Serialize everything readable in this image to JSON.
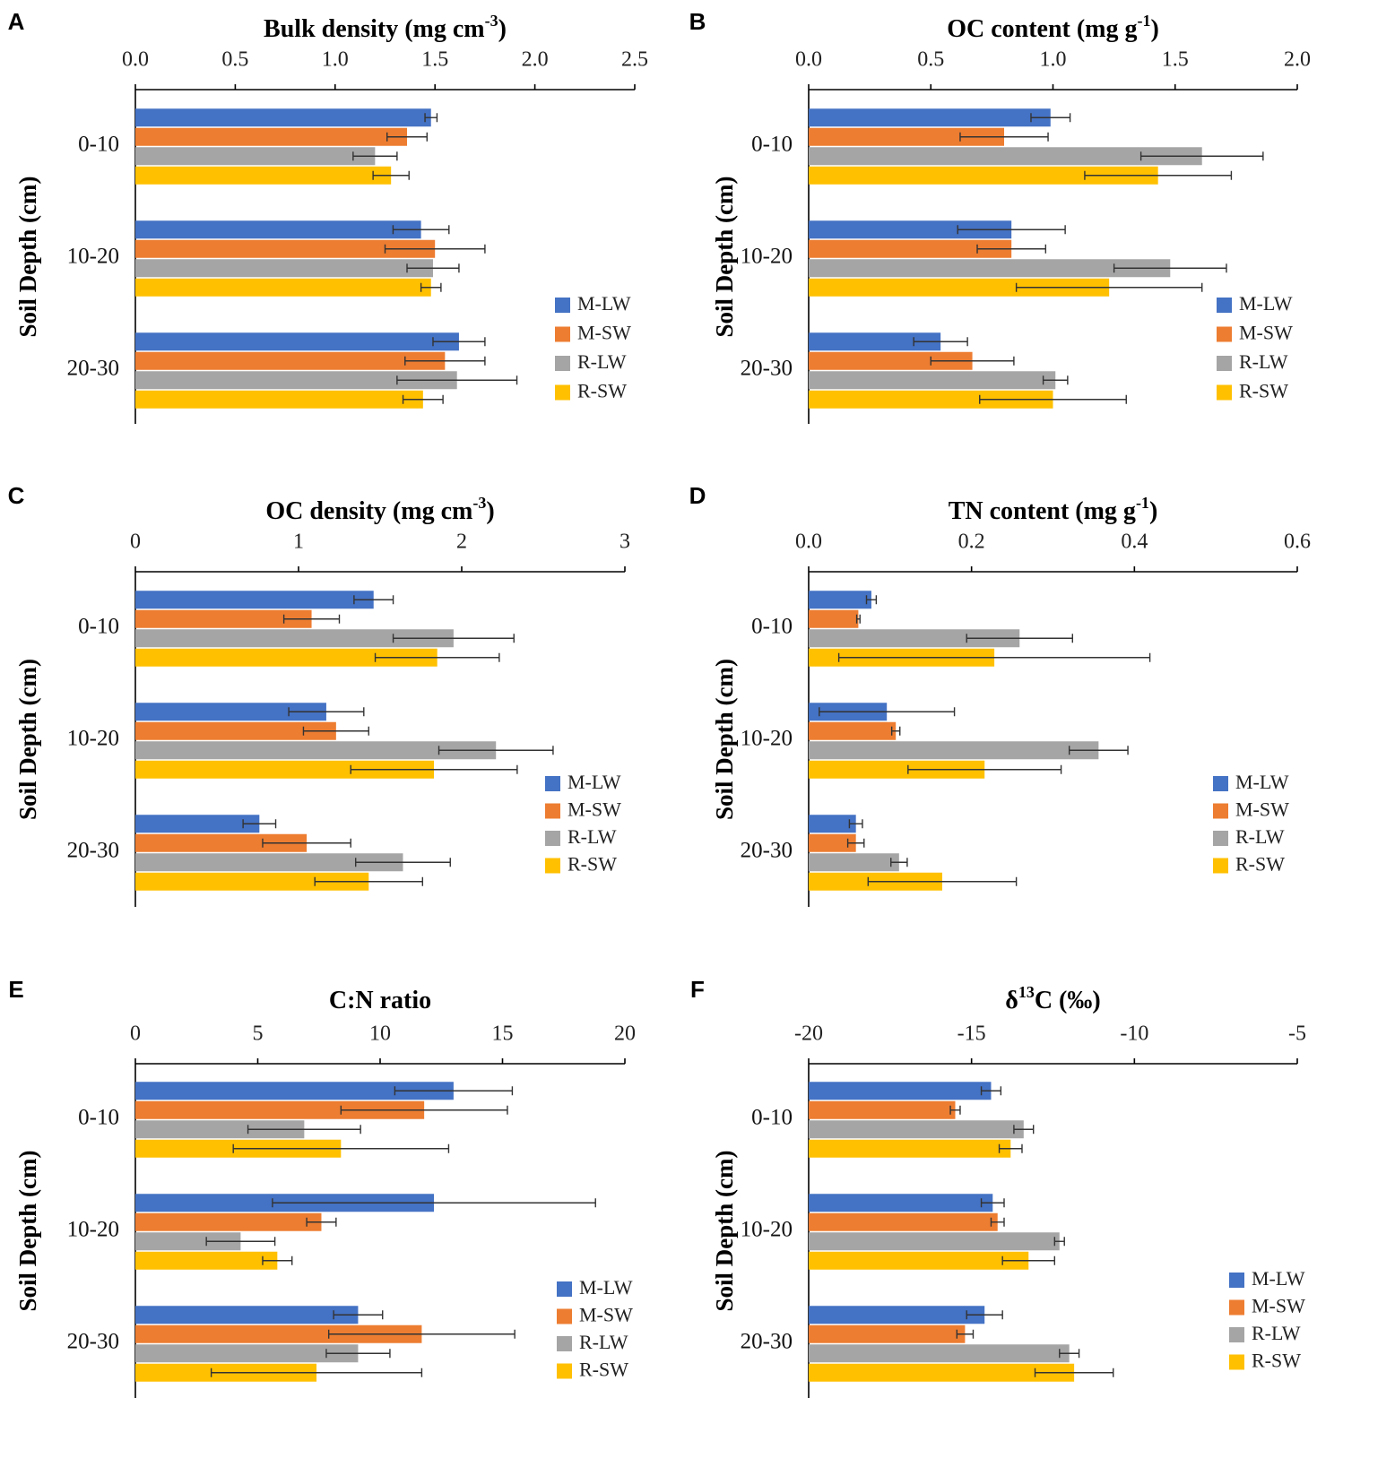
{
  "series_names": [
    "M-LW",
    "M-SW",
    "R-LW",
    "R-SW"
  ],
  "colors": [
    "#4472C4",
    "#ED7D31",
    "#A5A5A5",
    "#FFC000"
  ],
  "depth_labels": [
    "0-10",
    "10-20",
    "20-30"
  ],
  "y_axis_label": "Soil Depth (cm)",
  "chart_data": [
    {
      "type": "bar",
      "letter": "A",
      "title": "Bulk density (mg cm-3)",
      "title_parts": {
        "pre": "Bulk density (mg cm",
        "sup": "-3",
        "post": ")"
      },
      "xlim": [
        0,
        2.5
      ],
      "ticks": [
        0,
        0.5,
        1,
        1.5,
        2,
        2.5
      ],
      "tick_labels": [
        "0.0",
        "0.5",
        "1.0",
        "1.5",
        "2.0",
        "2.5"
      ],
      "categories": [
        "0-10",
        "10-20",
        "20-30"
      ],
      "series": [
        {
          "name": "M-LW",
          "values": [
            1.48,
            1.43,
            1.62
          ],
          "errors": [
            0.03,
            0.14,
            0.13
          ]
        },
        {
          "name": "M-SW",
          "values": [
            1.36,
            1.5,
            1.55
          ],
          "errors": [
            0.1,
            0.25,
            0.2
          ]
        },
        {
          "name": "R-LW",
          "values": [
            1.2,
            1.49,
            1.61
          ],
          "errors": [
            0.11,
            0.13,
            0.3
          ]
        },
        {
          "name": "R-SW",
          "values": [
            1.28,
            1.48,
            1.44
          ],
          "errors": [
            0.09,
            0.05,
            0.1
          ]
        }
      ]
    },
    {
      "type": "bar",
      "letter": "B",
      "title": "OC content (mg g-1)",
      "title_parts": {
        "pre": "OC content (mg g",
        "sup": "-1",
        "post": ")"
      },
      "xlim": [
        0,
        2.0
      ],
      "ticks": [
        0,
        0.5,
        1,
        1.5,
        2
      ],
      "tick_labels": [
        "0.0",
        "0.5",
        "1.0",
        "1.5",
        "2.0"
      ],
      "categories": [
        "0-10",
        "10-20",
        "20-30"
      ],
      "series": [
        {
          "name": "M-LW",
          "values": [
            0.99,
            0.83,
            0.54
          ],
          "errors": [
            0.08,
            0.22,
            0.11
          ]
        },
        {
          "name": "M-SW",
          "values": [
            0.8,
            0.83,
            0.67
          ],
          "errors": [
            0.18,
            0.14,
            0.17
          ]
        },
        {
          "name": "R-LW",
          "values": [
            1.61,
            1.48,
            1.01
          ],
          "errors": [
            0.25,
            0.23,
            0.05
          ]
        },
        {
          "name": "R-SW",
          "values": [
            1.43,
            1.23,
            1.0
          ],
          "errors": [
            0.3,
            0.38,
            0.3
          ]
        }
      ]
    },
    {
      "type": "bar",
      "letter": "C",
      "title": "OC density (mg cm-3)",
      "title_parts": {
        "pre": "OC density (mg cm",
        "sup": "-3",
        "post": ")"
      },
      "xlim": [
        0,
        3
      ],
      "ticks": [
        0,
        1,
        2,
        3
      ],
      "tick_labels": [
        "0",
        "1",
        "2",
        "3"
      ],
      "categories": [
        "0-10",
        "10-20",
        "20-30"
      ],
      "series": [
        {
          "name": "M-LW",
          "values": [
            1.46,
            1.17,
            0.76
          ],
          "errors": [
            0.12,
            0.23,
            0.1
          ]
        },
        {
          "name": "M-SW",
          "values": [
            1.08,
            1.23,
            1.05
          ],
          "errors": [
            0.17,
            0.2,
            0.27
          ]
        },
        {
          "name": "R-LW",
          "values": [
            1.95,
            2.21,
            1.64
          ],
          "errors": [
            0.37,
            0.35,
            0.29
          ]
        },
        {
          "name": "R-SW",
          "values": [
            1.85,
            1.83,
            1.43
          ],
          "errors": [
            0.38,
            0.51,
            0.33
          ]
        }
      ]
    },
    {
      "type": "bar",
      "letter": "D",
      "title": "TN content (mg g-1)",
      "title_parts": {
        "pre": "TN content (mg g",
        "sup": "-1",
        "post": ")"
      },
      "xlim": [
        0,
        0.6
      ],
      "ticks": [
        0,
        0.2,
        0.4,
        0.6
      ],
      "tick_labels": [
        "0.0",
        "0.2",
        "0.4",
        "0.6"
      ],
      "categories": [
        "0-10",
        "10-20",
        "20-30"
      ],
      "series": [
        {
          "name": "M-LW",
          "values": [
            0.077,
            0.096,
            0.058
          ],
          "errors": [
            0.006,
            0.083,
            0.008
          ]
        },
        {
          "name": "M-SW",
          "values": [
            0.061,
            0.107,
            0.058
          ],
          "errors": [
            0.002,
            0.005,
            0.01
          ]
        },
        {
          "name": "R-LW",
          "values": [
            0.259,
            0.356,
            0.111
          ],
          "errors": [
            0.065,
            0.036,
            0.01
          ]
        },
        {
          "name": "R-SW",
          "values": [
            0.228,
            0.216,
            0.164
          ],
          "errors": [
            0.191,
            0.094,
            0.091
          ]
        }
      ]
    },
    {
      "type": "bar",
      "letter": "E",
      "title": "C:N ratio",
      "title_parts": {
        "pre": "C:N ratio",
        "sup": "",
        "post": ""
      },
      "xlim": [
        0,
        20
      ],
      "ticks": [
        0,
        5,
        10,
        15,
        20
      ],
      "tick_labels": [
        "0",
        "5",
        "10",
        "15",
        "20"
      ],
      "categories": [
        "0-10",
        "10-20",
        "20-30"
      ],
      "series": [
        {
          "name": "M-LW",
          "values": [
            13.0,
            12.2,
            9.1
          ],
          "errors": [
            2.4,
            6.6,
            1.0
          ]
        },
        {
          "name": "M-SW",
          "values": [
            11.8,
            7.6,
            11.7
          ],
          "errors": [
            3.4,
            0.6,
            3.8
          ]
        },
        {
          "name": "R-LW",
          "values": [
            6.9,
            4.3,
            9.1
          ],
          "errors": [
            2.3,
            1.4,
            1.3
          ]
        },
        {
          "name": "R-SW",
          "values": [
            8.4,
            5.8,
            7.4
          ],
          "errors": [
            4.4,
            0.6,
            4.3
          ]
        }
      ]
    },
    {
      "type": "bar",
      "letter": "F",
      "title": "δ13C (‰)",
      "title_parts": {
        "pre": "δ",
        "sup": "13",
        "post": "C (‰)"
      },
      "xlim": [
        -20,
        -5
      ],
      "ticks": [
        -20,
        -15,
        -10,
        -5
      ],
      "tick_labels": [
        "-20",
        "-15",
        "-10",
        "-5"
      ],
      "categories": [
        "0-10",
        "10-20",
        "20-30"
      ],
      "series": [
        {
          "name": "M-LW",
          "values": [
            -14.4,
            -14.35,
            -14.6
          ],
          "errors": [
            0.3,
            0.35,
            0.55
          ]
        },
        {
          "name": "M-SW",
          "values": [
            -15.5,
            -14.2,
            -15.2
          ],
          "errors": [
            0.15,
            0.2,
            0.25
          ]
        },
        {
          "name": "R-LW",
          "values": [
            -13.4,
            -12.3,
            -12.0
          ],
          "errors": [
            0.3,
            0.15,
            0.3
          ]
        },
        {
          "name": "R-SW",
          "values": [
            -13.8,
            -13.25,
            -11.85
          ],
          "errors": [
            0.35,
            0.8,
            1.2
          ]
        }
      ]
    }
  ]
}
